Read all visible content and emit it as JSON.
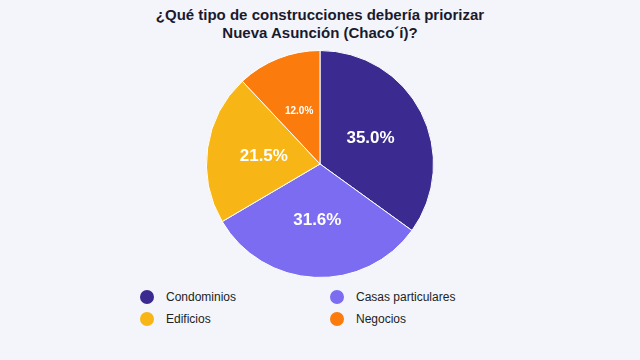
{
  "chart_data": {
    "type": "pie",
    "title": "¿Qué tipo de construcciones debería priorizar Nueva Asunción (Chaco´í)?",
    "categories": [
      "Condominios",
      "Casas particulares",
      "Edificios",
      "Negocios"
    ],
    "values": [
      35.0,
      31.6,
      21.5,
      12.0
    ],
    "value_labels": [
      "35.0%",
      "31.6%",
      "21.5%",
      "12.0%"
    ],
    "colors": [
      "#3b2a8f",
      "#7b6cf2",
      "#f7b616",
      "#fb7c0c"
    ],
    "data_labels": true,
    "legend": "bottom"
  }
}
